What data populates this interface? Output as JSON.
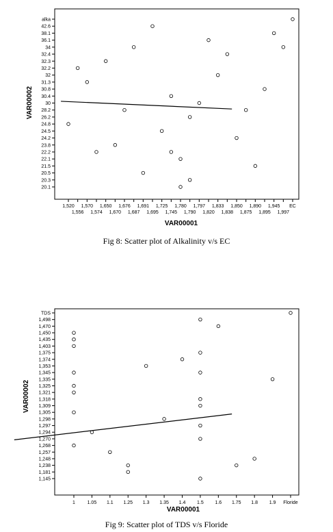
{
  "chart_data": [
    {
      "type": "scatter",
      "title": "",
      "xlabel": "VAR00001",
      "ylabel": "VAR00002",
      "x_categories": [
        "1,520",
        "1,556",
        "1,570",
        "1,574",
        "1,650",
        "1,670",
        "1,676",
        "1,687",
        "1,691",
        "1,695",
        "1,725",
        "1,745",
        "1,780",
        "1,790",
        "1,797",
        "1,820",
        "1,833",
        "1,838",
        "1,850",
        "1,875",
        "1,890",
        "1,895",
        "1,945",
        "1,997",
        "EC"
      ],
      "y_categories": [
        "20.1",
        "20.3",
        "20.5",
        "21.5",
        "22.1",
        "22.2",
        "23.8",
        "24.2",
        "24.5",
        "24.8",
        "26.2",
        "28.2",
        "30",
        "30.4",
        "30.8",
        "31.3",
        "32",
        "32.2",
        "32.3",
        "32.4",
        "34",
        "36.1",
        "38.1",
        "42.6",
        "alka"
      ],
      "points": [
        {
          "x": "1,520",
          "y": "24.8"
        },
        {
          "x": "1,556",
          "y": "32.2"
        },
        {
          "x": "1,570",
          "y": "31.3"
        },
        {
          "x": "1,574",
          "y": "22.2"
        },
        {
          "x": "1,650",
          "y": "32.3"
        },
        {
          "x": "1,670",
          "y": "23.8"
        },
        {
          "x": "1,676",
          "y": "28.2"
        },
        {
          "x": "1,687",
          "y": "34"
        },
        {
          "x": "1,691",
          "y": "20.5"
        },
        {
          "x": "1,695",
          "y": "42.6"
        },
        {
          "x": "1,725",
          "y": "24.5"
        },
        {
          "x": "1,745",
          "y": "30.4"
        },
        {
          "x": "1,745",
          "y": "22.2"
        },
        {
          "x": "1,780",
          "y": "22.1"
        },
        {
          "x": "1,780",
          "y": "20.1"
        },
        {
          "x": "1,790",
          "y": "26.2"
        },
        {
          "x": "1,790",
          "y": "20.3"
        },
        {
          "x": "1,797",
          "y": "30"
        },
        {
          "x": "1,820",
          "y": "36.1"
        },
        {
          "x": "1,833",
          "y": "32"
        },
        {
          "x": "1,838",
          "y": "32.4"
        },
        {
          "x": "1,850",
          "y": "24.2"
        },
        {
          "x": "1,875",
          "y": "28.2"
        },
        {
          "x": "1,890",
          "y": "21.5"
        },
        {
          "x": "1,895",
          "y": "30.8"
        },
        {
          "x": "1,945",
          "y": "38.1"
        },
        {
          "x": "1,997",
          "y": "34"
        },
        {
          "x": "EC",
          "y": "alka"
        }
      ],
      "fit_line": {
        "x_start": -0.8,
        "y_start": 12.25,
        "x_end": 17.5,
        "y_end": 11.15
      },
      "grid": false,
      "legend": "none"
    },
    {
      "type": "scatter",
      "title": "",
      "xlabel": "VAR00001",
      "ylabel": "VAR00002",
      "x_categories": [
        "1",
        "1.05",
        "1.1",
        "1.25",
        "1.3",
        "1.35",
        "1.4",
        "1.5",
        "1.6",
        "1.75",
        "1.8",
        "1.9",
        "Floride"
      ],
      "y_categories": [
        "1,145",
        "1,181",
        "1,238",
        "1,248",
        "1,257",
        "1,268",
        "1,270",
        "1,294",
        "1,297",
        "1,298",
        "1,305",
        "1,309",
        "1,318",
        "1,321",
        "1,325",
        "1,335",
        "1,345",
        "1,353",
        "1,374",
        "1,375",
        "1,403",
        "1,435",
        "1,450",
        "1,470",
        "1,498",
        "TDS"
      ],
      "points": [
        {
          "x": "1",
          "y": "1,450"
        },
        {
          "x": "1",
          "y": "1,435"
        },
        {
          "x": "1",
          "y": "1,403"
        },
        {
          "x": "1",
          "y": "1,345"
        },
        {
          "x": "1",
          "y": "1,325"
        },
        {
          "x": "1",
          "y": "1,321"
        },
        {
          "x": "1",
          "y": "1,305"
        },
        {
          "x": "1",
          "y": "1,268"
        },
        {
          "x": "1.05",
          "y": "1,294"
        },
        {
          "x": "1.1",
          "y": "1,257"
        },
        {
          "x": "1.25",
          "y": "1,238"
        },
        {
          "x": "1.25",
          "y": "1,181"
        },
        {
          "x": "1.3",
          "y": "1,353"
        },
        {
          "x": "1.35",
          "y": "1,298"
        },
        {
          "x": "1.4",
          "y": "1,374"
        },
        {
          "x": "1.5",
          "y": "1,498"
        },
        {
          "x": "1.5",
          "y": "1,375"
        },
        {
          "x": "1.5",
          "y": "1,345"
        },
        {
          "x": "1.5",
          "y": "1,318"
        },
        {
          "x": "1.5",
          "y": "1,309"
        },
        {
          "x": "1.5",
          "y": "1,297"
        },
        {
          "x": "1.5",
          "y": "1,270"
        },
        {
          "x": "1.5",
          "y": "1,145"
        },
        {
          "x": "1.6",
          "y": "1,470"
        },
        {
          "x": "1.75",
          "y": "1,238"
        },
        {
          "x": "1.8",
          "y": "1,248"
        },
        {
          "x": "1.9",
          "y": "1,335"
        },
        {
          "x": "Floride",
          "y": "TDS"
        }
      ],
      "fit_line": {
        "x_start": -3.3,
        "y_start": 5.85,
        "x_end": 8.75,
        "y_end": 9.75
      },
      "grid": false,
      "legend": "none"
    }
  ],
  "captions": {
    "fig8": "Fig 8: Scatter plot of Alkalinity v/s EC",
    "fig9": "Fig 9: Scatter plot of TDS v/s Floride"
  }
}
